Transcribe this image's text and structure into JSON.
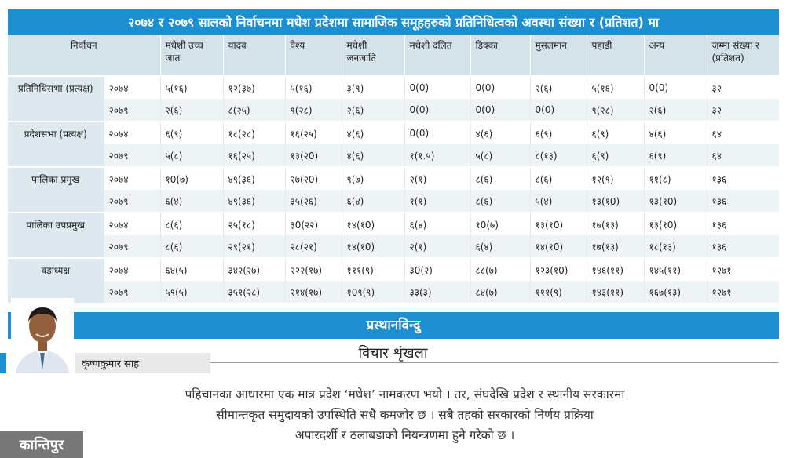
{
  "title": "२०७४ र २०७९ सालको निर्वाचनमा मधेश प्रदेशमा सामाजिक समूहहरुको प्रतिनिधित्वको अवस्था संख्या र (प्रतिशत) मा",
  "table": {
    "headers": [
      "निर्वाचन",
      "मधेशी उच्च जात",
      "यादव",
      "वैश्य",
      "मधेशी जनजाति",
      "मधेशी दलित",
      "डिक्का",
      "मुसलमान",
      "पहाडी",
      "अन्य",
      "जम्मा संख्या र (प्रतिशत)"
    ],
    "groups": [
      {
        "name": "प्रतिनिधिसभा (प्रत्यक्ष)",
        "rows": [
          {
            "year": "२०७४",
            "cells": [
              "५(१६)",
              "१२(३७)",
              "५(१६)",
              "३(९)",
              "0(0)",
              "0(0)",
              "२(६)",
              "५(१६)",
              "0(0)",
              "३२"
            ]
          },
          {
            "year": "२०७९",
            "cells": [
              "२(६)",
              "८(२५)",
              "९(२८)",
              "२(६)",
              "0(0)",
              "0(0)",
              "0(0)",
              "९(२८)",
              "२(६)",
              "३२"
            ]
          }
        ]
      },
      {
        "name": "प्रदेशसभा (प्रत्यक्ष)",
        "rows": [
          {
            "year": "२०७४",
            "cells": [
              "६(९)",
              "१८(२८)",
              "१६(२५)",
              "४(६)",
              "0(0)",
              "४(६)",
              "६(९)",
              "६(९)",
              "४(६)",
              "६४"
            ]
          },
          {
            "year": "२०७९",
            "cells": [
              "५(८)",
              "१६(२५)",
              "१३(२0)",
              "४(६)",
              "१(१.५)",
              "५(८)",
              "८(१३)",
              "६(९)",
              "६(९)",
              "६४"
            ]
          }
        ]
      },
      {
        "name": "पालिका प्रमुख",
        "rows": [
          {
            "year": "२०७४",
            "cells": [
              "१0(७)",
              "४९(३६)",
              "२७(२0)",
              "९(७)",
              "२(१)",
              "८(६)",
              "८(६)",
              "१२(९)",
              "११(८)",
              "१३६"
            ]
          },
          {
            "year": "२०७९",
            "cells": [
              "६(४)",
              "४९(३६)",
              "३५(२६)",
              "६(४)",
              "१(१)",
              "८(६)",
              "५(४)",
              "१३(१0)",
              "१३(१0)",
              "१३६"
            ]
          }
        ]
      },
      {
        "name": "पालिका उपप्रमुख",
        "rows": [
          {
            "year": "२०७४",
            "cells": [
              "८(६)",
              "२५(१८)",
              "३0(२२)",
              "१४(१0)",
              "६(४)",
              "१0(७)",
              "१३(१0)",
              "१७(१३)",
              "१३(१0)",
              "१३६"
            ]
          },
          {
            "year": "२०७९",
            "cells": [
              "८(६)",
              "२९(२१)",
              "२८(२१)",
              "१४(१0)",
              "२(१)",
              "६(४)",
              "१४(१0)",
              "१७(१३)",
              "१८(१३)",
              "१३६"
            ]
          }
        ]
      },
      {
        "name": "वडाध्यक्ष",
        "rows": [
          {
            "year": "२०७४",
            "cells": [
              "६४(५)",
              "३४२(२७)",
              "२२२(१७)",
              "१११(९)",
              "३0(२)",
              "८८(७)",
              "१२३(१0)",
              "१४६(११)",
              "१४५(११)",
              "१२७१"
            ]
          },
          {
            "year": "२०७९",
            "cells": [
              "५९(५)",
              "३५१(२८)",
              "२१४(१७)",
              "१0९(९)",
              "३३(३)",
              "८४(७)",
              "१११(९)",
              "१४३(११)",
              "१६७(१३)",
              "१२७१"
            ]
          }
        ]
      }
    ]
  },
  "banner": {
    "title": "प्रस्थानविन्दु",
    "subtitle": "विचार शृंखला"
  },
  "author": "कृष्णकुमार साह",
  "quote": [
    "पहिचानका आधारमा एक मात्र प्रदेश ‘मधेश’ नामकरण भयो । तर, संघदेखि प्रदेश र स्थानीय सरकारमा",
    "सीमान्तकृत समुदायको उपस्थिति सधैं कमजोर छ । सबै तहको सरकारको निर्णय प्रक्रिया",
    "अपारदर्शी र ठलाबडाको नियन्त्रणमा हुने गरेको छ ।"
  ],
  "logo": "कान्तिपुर",
  "colors": {
    "accent": "#1d8fd0",
    "header_bg": "#d4e2ea"
  }
}
